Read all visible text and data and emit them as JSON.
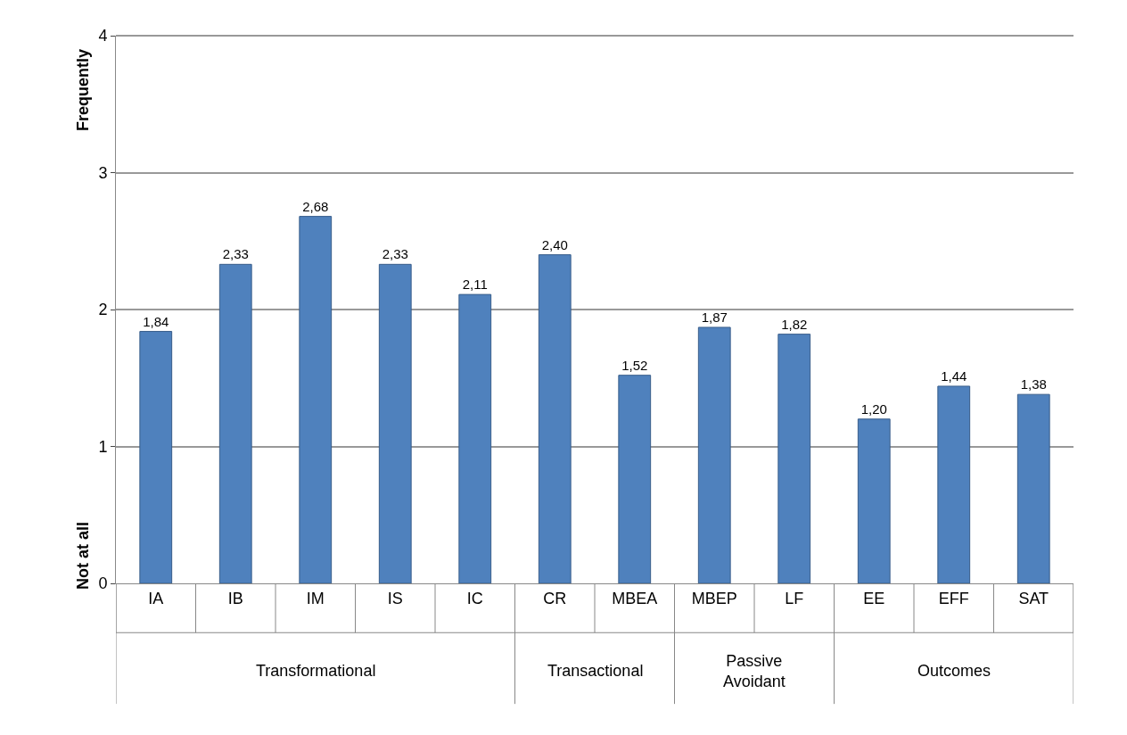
{
  "chart_data": {
    "type": "bar",
    "categories": [
      "IA",
      "IB",
      "IM",
      "IS",
      "IC",
      "CR",
      "MBEA",
      "MBEP",
      "LF",
      "EE",
      "EFF",
      "SAT"
    ],
    "values": [
      1.84,
      2.33,
      2.68,
      2.33,
      2.11,
      2.4,
      1.52,
      1.87,
      1.82,
      1.2,
      1.44,
      1.38
    ],
    "value_labels": [
      "1,84",
      "2,33",
      "2,68",
      "2,33",
      "2,11",
      "2,40",
      "1,52",
      "1,87",
      "1,82",
      "1,20",
      "1,44",
      "1,38"
    ],
    "color": "#4f81bd",
    "ylim": [
      0,
      4
    ],
    "yticks": [
      0,
      1,
      2,
      3,
      4
    ],
    "grid": "y",
    "legend": false,
    "annotations": [
      "Transformational",
      "Transactional",
      "Passive Avoidant",
      "Outcomes",
      "Not at all",
      "Frequently"
    ]
  }
}
